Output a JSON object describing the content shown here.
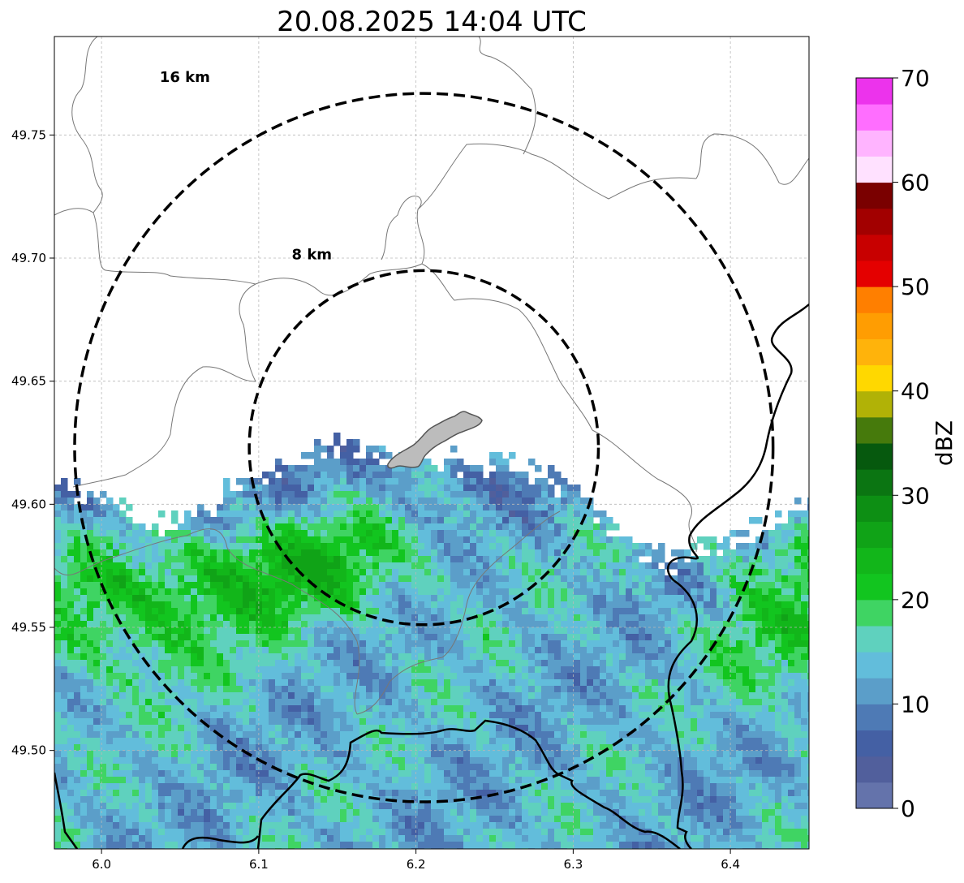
{
  "map": {
    "title": "20.08.2025 14:04 UTC",
    "x_ticks": [
      "6.0",
      "6.1",
      "6.2",
      "6.3",
      "6.4"
    ],
    "x_tick_values": [
      6.0,
      6.1,
      6.2,
      6.3,
      6.4
    ],
    "y_ticks": [
      "49.75",
      "49.70",
      "49.65",
      "49.60",
      "49.55",
      "49.50"
    ],
    "y_tick_values": [
      49.75,
      49.7,
      49.65,
      49.6,
      49.55,
      49.5
    ],
    "lon_range": [
      5.97,
      6.45
    ],
    "lat_range": [
      49.46,
      49.79
    ],
    "radar_center": {
      "lon": 6.205,
      "lat": 49.623
    },
    "range_rings": [
      {
        "label": "8 km",
        "radius_km": 8
      },
      {
        "label": "16 km",
        "radius_km": 16
      }
    ],
    "precip_edge": {
      "lon": [
        5.97,
        6.0,
        6.03,
        6.06,
        6.1,
        6.15,
        6.2,
        6.25,
        6.3,
        6.33,
        6.36,
        6.4,
        6.45
      ],
      "lat": [
        49.608,
        49.603,
        49.59,
        49.598,
        49.612,
        49.625,
        49.618,
        49.617,
        49.607,
        49.588,
        49.577,
        49.585,
        49.6
      ]
    }
  },
  "colorbar": {
    "label": "dBZ",
    "ticks": [
      "0",
      "10",
      "20",
      "30",
      "40",
      "50",
      "60",
      "70"
    ],
    "tick_values": [
      0,
      10,
      20,
      30,
      40,
      50,
      60,
      70
    ],
    "range": [
      0,
      70
    ],
    "step": 2.5,
    "colors": [
      "#6473ab",
      "#515f9c",
      "#4460a4",
      "#4e7ab5",
      "#5b9ec9",
      "#62bddb",
      "#5fd1be",
      "#3fd463",
      "#12c51f",
      "#12b61a",
      "#10a317",
      "#0d8f14",
      "#0b7512",
      "#06590e",
      "#467a0c",
      "#b1b206",
      "#ffd800",
      "#ffb30b",
      "#ff9d02",
      "#ff7f00",
      "#e40000",
      "#c80000",
      "#a20000",
      "#7a0000",
      "#ffe1ff",
      "#ffb4ff",
      "#ff6eff",
      "#ec33ec"
    ]
  }
}
